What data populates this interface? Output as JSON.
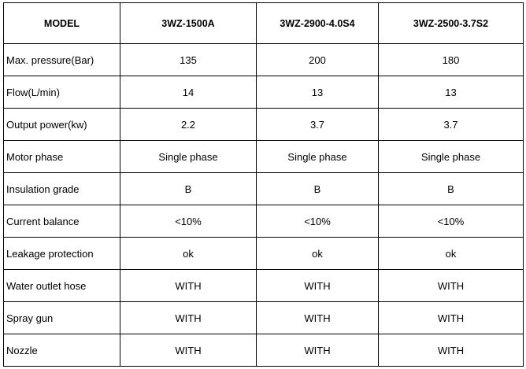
{
  "table": {
    "header": [
      "MODEL",
      "3WZ-1500A",
      "3WZ-2900-4.0S4",
      "3WZ-2500-3.7S2"
    ],
    "rows": [
      [
        "Max. pressure(Bar)",
        "135",
        "200",
        "180"
      ],
      [
        "Flow(L/min)",
        "14",
        "13",
        "13"
      ],
      [
        "Output power(kw)",
        "2.2",
        "3.7",
        "3.7"
      ],
      [
        "Motor phase",
        "Single phase",
        "Single phase",
        "Single phase"
      ],
      [
        "Insulation grade",
        "B",
        "B",
        "B"
      ],
      [
        "Current balance",
        "<10%",
        "<10%",
        "<10%"
      ],
      [
        "Leakage protection",
        "ok",
        "ok",
        "ok"
      ],
      [
        "Water outlet hose",
        "WITH",
        "WITH",
        "WITH"
      ],
      [
        "Spray gun",
        "WITH",
        "WITH",
        "WITH"
      ],
      [
        "Nozzle",
        "WITH",
        "WITH",
        "WITH"
      ]
    ]
  }
}
